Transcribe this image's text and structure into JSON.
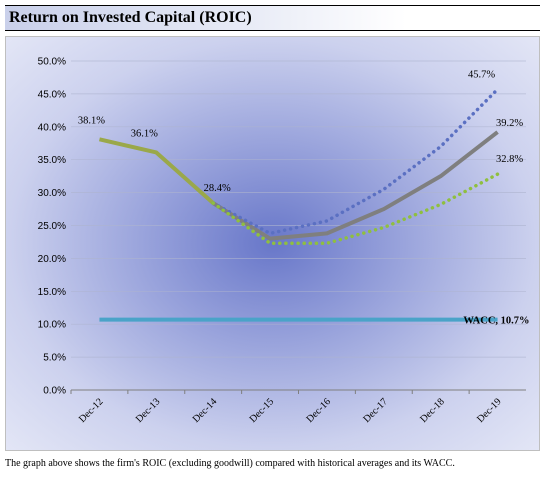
{
  "title": "Return on Invested Capital (ROIC)",
  "caption": "The graph above shows the firm's ROIC (excluding goodwill) compared with historical averages and its WACC.",
  "colors": {
    "roic": "#7f7f7f",
    "upper": "#5b70c2",
    "lower": "#8fbf3f",
    "wacc": "#4aa3c8",
    "history": "#9aa84a"
  },
  "chart_data": {
    "type": "line",
    "title": "",
    "xlabel": "",
    "ylabel": "",
    "categories": [
      "Dec-12",
      "Dec-13",
      "Dec-14",
      "Dec-15",
      "Dec-16",
      "Dec-17",
      "Dec-18",
      "Dec-19"
    ],
    "ylim": [
      0,
      50
    ],
    "yticks": [
      "0.0%",
      "5.0%",
      "10.0%",
      "15.0%",
      "20.0%",
      "25.0%",
      "30.0%",
      "35.0%",
      "40.0%",
      "45.0%",
      "50.0%"
    ],
    "grid": "horizontal",
    "series": [
      {
        "style": "solid",
        "color": "#9aa84a",
        "values": [
          38.1,
          36.1,
          28.4,
          null,
          null,
          null,
          null,
          null
        ]
      },
      {
        "style": "solid",
        "color": "#7f7f7f",
        "values": [
          null,
          null,
          28.4,
          23.0,
          23.8,
          27.5,
          32.5,
          39.2
        ]
      },
      {
        "style": "dotted",
        "color": "#5b70c2",
        "values": [
          null,
          null,
          28.4,
          23.8,
          25.7,
          30.5,
          37.0,
          45.7
        ]
      },
      {
        "style": "dotted",
        "color": "#8fbf3f",
        "values": [
          null,
          null,
          28.4,
          22.3,
          22.3,
          24.7,
          28.2,
          32.8
        ]
      },
      {
        "style": "solid",
        "color": "#4aa3c8",
        "values": [
          10.7,
          10.7,
          10.7,
          10.7,
          10.7,
          10.7,
          10.7,
          10.7
        ]
      }
    ],
    "data_labels": [
      {
        "index": 0,
        "value": 38.1,
        "text": "38.1%"
      },
      {
        "index": 1,
        "value": 36.1,
        "text": "36.1%"
      },
      {
        "index": 2,
        "value": 28.4,
        "text": "28.4%"
      },
      {
        "index": 7,
        "value": 45.7,
        "text": "45.7%"
      },
      {
        "index": 7,
        "value": 39.2,
        "text": "39.2%"
      },
      {
        "index": 7,
        "value": 32.8,
        "text": "32.8%"
      }
    ],
    "wacc_label": "WACC, 10.7%",
    "wacc_value": 10.7
  }
}
